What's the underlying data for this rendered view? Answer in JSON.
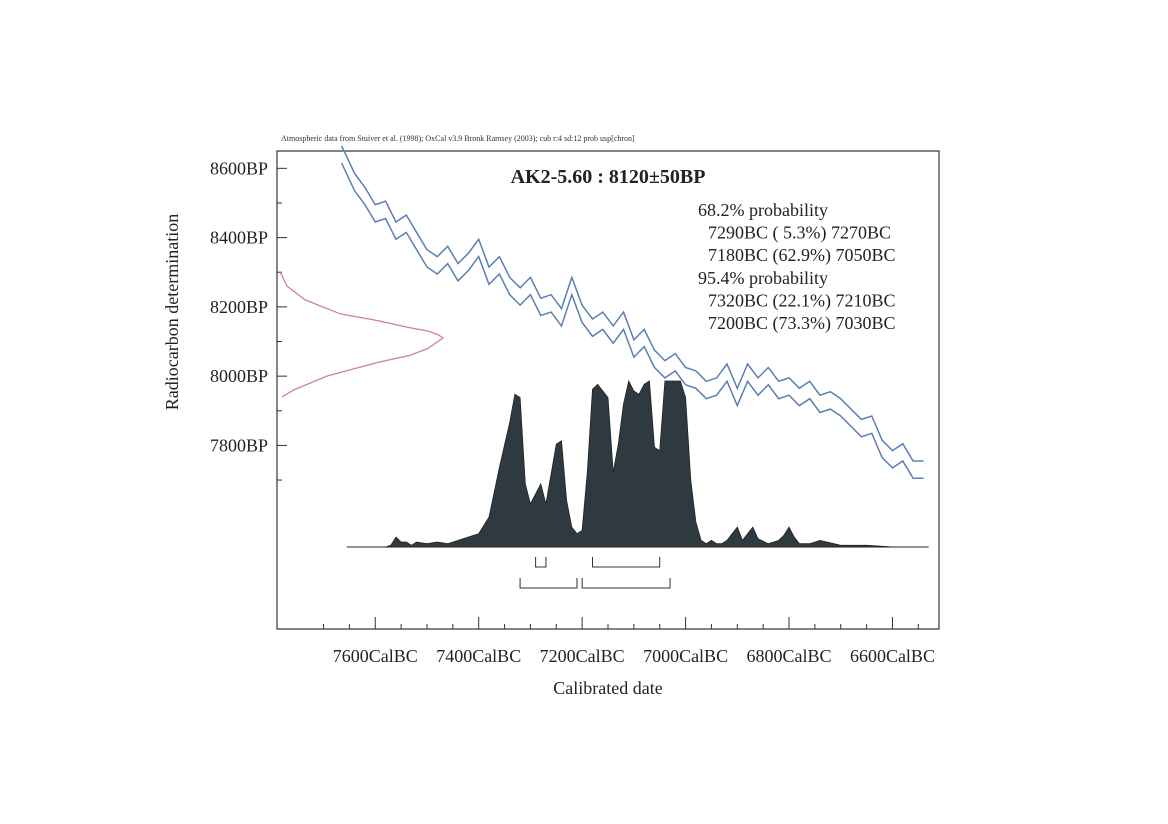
{
  "chart_data": {
    "type": "area",
    "header": "Atmospheric data from Stuiver et al. (1998); OxCal v3.9 Bronk Ramsey (2003); cub r:4 sd:12 prob usp[chron]",
    "title": "AK2-5.60 : 8120±50BP",
    "xlabel": "Calibrated date",
    "ylabel": "Radiocarbon determination",
    "x_axis_direction": "BC years, decreasing left to right",
    "xlim": [
      7790,
      6510
    ],
    "ylim": [
      7270,
      8650
    ],
    "x_tick_values": [
      7600,
      7400,
      7200,
      7000,
      6800,
      6600
    ],
    "x_tick_labels": [
      "7600CalBC",
      "7400CalBC",
      "7200CalBC",
      "7000CalBC",
      "6800CalBC",
      "6600CalBC"
    ],
    "y_tick_values": [
      8600,
      8400,
      8200,
      8000,
      7800
    ],
    "y_tick_labels": [
      "8600BP",
      "8400BP",
      "8200BP",
      "8000BP",
      "7800BP"
    ],
    "probability_text": [
      "68.2% probability",
      "7290BC ( 5.3%) 7270BC",
      "7180BC (62.9%) 7050BC",
      "95.4% probability",
      "7320BC (22.1%) 7210BC",
      "7200BC (73.3%) 7030BC"
    ],
    "measurement": {
      "mean_bp": 8120,
      "sigma": 50
    },
    "ranges_68": [
      [
        7290,
        7270
      ],
      [
        7180,
        7050
      ]
    ],
    "ranges_95": [
      [
        7320,
        7210
      ],
      [
        7200,
        7030
      ]
    ],
    "calibration_curve": {
      "x": [
        7665,
        7640,
        7620,
        7600,
        7580,
        7560,
        7540,
        7520,
        7500,
        7480,
        7460,
        7440,
        7420,
        7400,
        7380,
        7360,
        7340,
        7320,
        7300,
        7280,
        7260,
        7240,
        7220,
        7200,
        7180,
        7160,
        7140,
        7120,
        7100,
        7080,
        7060,
        7040,
        7020,
        7000,
        6980,
        6960,
        6940,
        6920,
        6900,
        6880,
        6860,
        6840,
        6820,
        6800,
        6780,
        6760,
        6740,
        6720,
        6700,
        6680,
        6660,
        6640,
        6620,
        6600,
        6580,
        6560,
        6540
      ],
      "y": [
        8640,
        8560,
        8520,
        8470,
        8480,
        8420,
        8440,
        8390,
        8340,
        8320,
        8350,
        8300,
        8330,
        8370,
        8290,
        8320,
        8260,
        8230,
        8260,
        8200,
        8210,
        8170,
        8260,
        8180,
        8140,
        8160,
        8120,
        8160,
        8080,
        8110,
        8050,
        8020,
        8040,
        8000,
        7990,
        7960,
        7970,
        8010,
        7940,
        8010,
        7970,
        8000,
        7960,
        7970,
        7940,
        7960,
        7920,
        7930,
        7910,
        7880,
        7850,
        7860,
        7790,
        7760,
        7780,
        7730,
        7730
      ],
      "band_halfwidth": 25
    },
    "measurement_curve": {
      "y": [
        8300,
        8260,
        8220,
        8180,
        8160,
        8140,
        8130,
        8120,
        8110,
        8100,
        8080,
        8060,
        8040,
        8000,
        7960,
        7940
      ],
      "density": [
        0.02,
        0.06,
        0.17,
        0.38,
        0.61,
        0.8,
        0.91,
        0.97,
        1.0,
        0.97,
        0.91,
        0.8,
        0.61,
        0.3,
        0.1,
        0.03
      ]
    },
    "calibrated_distribution": {
      "x": [
        7650,
        7580,
        7570,
        7560,
        7550,
        7540,
        7530,
        7520,
        7500,
        7480,
        7460,
        7440,
        7420,
        7400,
        7380,
        7360,
        7340,
        7330,
        7320,
        7310,
        7300,
        7290,
        7280,
        7270,
        7260,
        7250,
        7240,
        7230,
        7220,
        7210,
        7200,
        7190,
        7180,
        7170,
        7160,
        7150,
        7140,
        7130,
        7120,
        7110,
        7100,
        7090,
        7080,
        7070,
        7060,
        7050,
        7040,
        7030,
        7020,
        7010,
        7000,
        6990,
        6980,
        6970,
        6960,
        6950,
        6940,
        6930,
        6920,
        6900,
        6890,
        6880,
        6870,
        6860,
        6840,
        6820,
        6810,
        6800,
        6790,
        6780,
        6760,
        6740,
        6700,
        6650,
        6600,
        6550
      ],
      "density": [
        0,
        0,
        0.01,
        0.06,
        0.03,
        0.03,
        0.01,
        0.03,
        0.02,
        0.03,
        0.02,
        0.04,
        0.06,
        0.08,
        0.18,
        0.48,
        0.75,
        0.92,
        0.9,
        0.38,
        0.26,
        0.32,
        0.38,
        0.26,
        0.44,
        0.62,
        0.64,
        0.28,
        0.12,
        0.08,
        0.1,
        0.45,
        0.95,
        0.98,
        0.94,
        0.9,
        0.45,
        0.62,
        0.86,
        1.0,
        0.94,
        0.92,
        0.98,
        1.0,
        0.6,
        0.58,
        1.0,
        1.0,
        1.0,
        1.0,
        0.9,
        0.4,
        0.15,
        0.04,
        0.02,
        0.04,
        0.02,
        0.02,
        0.04,
        0.12,
        0.04,
        0.08,
        0.12,
        0.05,
        0.02,
        0.04,
        0.07,
        0.12,
        0.06,
        0.02,
        0.02,
        0.04,
        0.01,
        0.01,
        0,
        0
      ]
    },
    "colors": {
      "calibration_curve": "#5a7fb5",
      "measurement_curve": "#d4828f",
      "distribution_fill": "#2f3a40",
      "axes": "#333333"
    }
  }
}
